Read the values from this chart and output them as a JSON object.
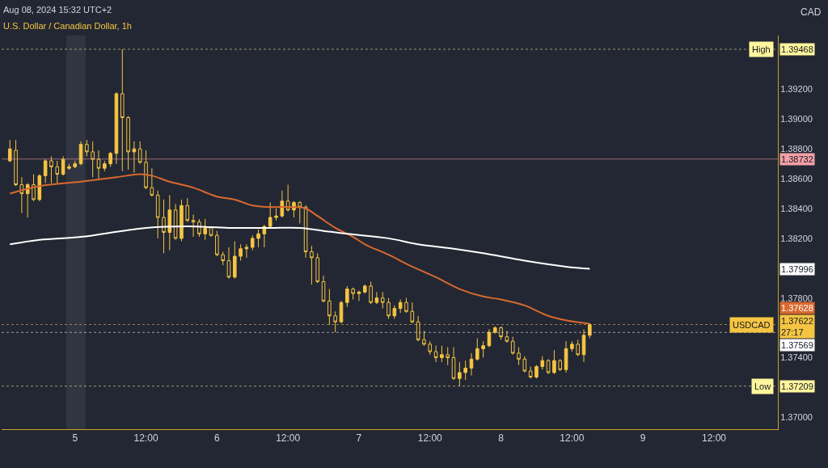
{
  "chart_data": {
    "type": "candlestick",
    "title": "U.S. Dollar / Canadian Dollar, 1h",
    "subtitle": "Aug 08, 2024 15:32 UTC+2",
    "color": "#f5c542",
    "x": [
      "2024-08-04T13:00",
      "2024-08-04T14:00",
      "2024-08-04T15:00",
      "2024-08-04T16:00",
      "2024-08-04T17:00",
      "2024-08-04T18:00",
      "2024-08-04T19:00",
      "2024-08-04T20:00",
      "2024-08-04T21:00",
      "2024-08-04T22:00",
      "2024-08-04T23:00",
      "2024-08-05T00:00",
      "2024-08-05T01:00",
      "2024-08-05T02:00",
      "2024-08-05T03:00",
      "2024-08-05T04:00",
      "2024-08-05T05:00",
      "2024-08-05T06:00",
      "2024-08-05T07:00",
      "2024-08-05T08:00",
      "2024-08-05T09:00",
      "2024-08-05T10:00",
      "2024-08-05T11:00",
      "2024-08-05T12:00",
      "2024-08-05T13:00",
      "2024-08-05T14:00",
      "2024-08-05T15:00",
      "2024-08-05T16:00",
      "2024-08-05T17:00",
      "2024-08-05T18:00",
      "2024-08-05T19:00",
      "2024-08-05T20:00",
      "2024-08-05T21:00",
      "2024-08-05T22:00",
      "2024-08-05T23:00",
      "2024-08-06T00:00",
      "2024-08-06T01:00",
      "2024-08-06T02:00",
      "2024-08-06T03:00",
      "2024-08-06T04:00",
      "2024-08-06T05:00",
      "2024-08-06T06:00",
      "2024-08-06T07:00",
      "2024-08-06T08:00",
      "2024-08-06T09:00",
      "2024-08-06T10:00",
      "2024-08-06T11:00",
      "2024-08-06T12:00",
      "2024-08-06T13:00",
      "2024-08-06T14:00",
      "2024-08-06T15:00",
      "2024-08-06T16:00",
      "2024-08-06T17:00",
      "2024-08-06T18:00",
      "2024-08-06T19:00",
      "2024-08-06T20:00",
      "2024-08-06T21:00",
      "2024-08-06T22:00",
      "2024-08-06T23:00",
      "2024-08-07T00:00",
      "2024-08-07T01:00",
      "2024-08-07T02:00",
      "2024-08-07T03:00",
      "2024-08-07T04:00",
      "2024-08-07T05:00",
      "2024-08-07T06:00",
      "2024-08-07T07:00",
      "2024-08-07T08:00",
      "2024-08-07T09:00",
      "2024-08-07T10:00",
      "2024-08-07T11:00",
      "2024-08-07T12:00",
      "2024-08-07T13:00",
      "2024-08-07T14:00",
      "2024-08-07T15:00",
      "2024-08-07T16:00",
      "2024-08-07T17:00",
      "2024-08-07T18:00",
      "2024-08-07T19:00",
      "2024-08-07T20:00",
      "2024-08-07T21:00",
      "2024-08-07T22:00",
      "2024-08-07T23:00",
      "2024-08-08T00:00",
      "2024-08-08T01:00",
      "2024-08-08T02:00",
      "2024-08-08T03:00",
      "2024-08-08T04:00",
      "2024-08-08T05:00",
      "2024-08-08T06:00",
      "2024-08-08T07:00",
      "2024-08-08T08:00",
      "2024-08-08T09:00",
      "2024-08-08T10:00",
      "2024-08-08T11:00",
      "2024-08-08T12:00",
      "2024-08-08T13:00",
      "2024-08-08T14:00",
      "2024-08-08T15:00"
    ],
    "ohlc": [
      [
        1.3872,
        1.3886,
        1.3871,
        1.388
      ],
      [
        1.3879,
        1.3886,
        1.3855,
        1.3856
      ],
      [
        1.3856,
        1.3861,
        1.3837,
        1.385
      ],
      [
        1.385,
        1.3857,
        1.3834,
        1.3856
      ],
      [
        1.3856,
        1.3863,
        1.3845,
        1.3846
      ],
      [
        1.3846,
        1.3863,
        1.3845,
        1.3862
      ],
      [
        1.3862,
        1.3873,
        1.3857,
        1.3872
      ],
      [
        1.3872,
        1.3875,
        1.3857,
        1.3868
      ],
      [
        1.3868,
        1.3872,
        1.3857,
        1.3863
      ],
      [
        1.3863,
        1.3875,
        1.3862,
        1.3873
      ],
      [
        1.3867,
        1.387,
        1.3866,
        1.3868
      ],
      [
        1.3868,
        1.3872,
        1.3867,
        1.387
      ],
      [
        1.387,
        1.3885,
        1.3869,
        1.3883
      ],
      [
        1.3883,
        1.3886,
        1.3875,
        1.3878
      ],
      [
        1.3878,
        1.3885,
        1.3861,
        1.3873
      ],
      [
        1.3873,
        1.3879,
        1.386,
        1.3867
      ],
      [
        1.3867,
        1.3872,
        1.3865,
        1.387
      ],
      [
        1.387,
        1.3878,
        1.3868,
        1.3877
      ],
      [
        1.3877,
        1.3918,
        1.387,
        1.3917
      ],
      [
        1.3917,
        1.39468,
        1.3865,
        1.3901
      ],
      [
        1.3901,
        1.3902,
        1.3866,
        1.3878
      ],
      [
        1.3878,
        1.3885,
        1.3864,
        1.388
      ],
      [
        1.388,
        1.3885,
        1.387,
        1.3871
      ],
      [
        1.3871,
        1.3879,
        1.3853,
        1.3854
      ],
      [
        1.3854,
        1.3867,
        1.3848,
        1.3849
      ],
      [
        1.3849,
        1.3852,
        1.382,
        1.3834
      ],
      [
        1.3834,
        1.3846,
        1.381,
        1.3824
      ],
      [
        1.3824,
        1.3849,
        1.3812,
        1.3839
      ],
      [
        1.3839,
        1.3843,
        1.3819,
        1.382
      ],
      [
        1.382,
        1.3846,
        1.3818,
        1.3842
      ],
      [
        1.3842,
        1.3847,
        1.3831,
        1.3832
      ],
      [
        1.3832,
        1.3836,
        1.3821,
        1.3831
      ],
      [
        1.3831,
        1.3833,
        1.3821,
        1.3823
      ],
      [
        1.3823,
        1.3833,
        1.3819,
        1.3827
      ],
      [
        1.3827,
        1.3828,
        1.3821,
        1.3822
      ],
      [
        1.3822,
        1.3825,
        1.3808,
        1.3809
      ],
      [
        1.3809,
        1.3811,
        1.3802,
        1.3805
      ],
      [
        1.3805,
        1.3814,
        1.3793,
        1.3794
      ],
      [
        1.3794,
        1.3818,
        1.3793,
        1.3808
      ],
      [
        1.3808,
        1.3816,
        1.3805,
        1.3813
      ],
      [
        1.3813,
        1.3816,
        1.3807,
        1.3814
      ],
      [
        1.3814,
        1.3822,
        1.3812,
        1.382
      ],
      [
        1.382,
        1.3826,
        1.3814,
        1.3823
      ],
      [
        1.3823,
        1.3829,
        1.3814,
        1.3828
      ],
      [
        1.3828,
        1.3844,
        1.3827,
        1.3834
      ],
      [
        1.3834,
        1.384,
        1.3832,
        1.3835
      ],
      [
        1.3835,
        1.3852,
        1.3834,
        1.3845
      ],
      [
        1.3845,
        1.3856,
        1.3838,
        1.3839
      ],
      [
        1.3839,
        1.3845,
        1.3834,
        1.3844
      ],
      [
        1.3844,
        1.3845,
        1.383,
        1.3841
      ],
      [
        1.3841,
        1.3842,
        1.3807,
        1.3811
      ],
      [
        1.3811,
        1.3815,
        1.3789,
        1.3807
      ],
      [
        1.3807,
        1.381,
        1.379,
        1.3791
      ],
      [
        1.3791,
        1.3795,
        1.3777,
        1.3778
      ],
      [
        1.3778,
        1.3786,
        1.3762,
        1.3768
      ],
      [
        1.3768,
        1.3771,
        1.3757,
        1.3764
      ],
      [
        1.3764,
        1.3778,
        1.3763,
        1.3777
      ],
      [
        1.3777,
        1.3788,
        1.3774,
        1.3786
      ],
      [
        1.3786,
        1.3787,
        1.3779,
        1.3783
      ],
      [
        1.3783,
        1.3785,
        1.3778,
        1.3784
      ],
      [
        1.3784,
        1.3789,
        1.3783,
        1.3788
      ],
      [
        1.3788,
        1.3791,
        1.3776,
        1.3777
      ],
      [
        1.3777,
        1.3784,
        1.3776,
        1.378
      ],
      [
        1.378,
        1.3784,
        1.3773,
        1.3777
      ],
      [
        1.3777,
        1.378,
        1.3766,
        1.3768
      ],
      [
        1.3768,
        1.3775,
        1.3766,
        1.3773
      ],
      [
        1.3773,
        1.3779,
        1.377,
        1.3777
      ],
      [
        1.3777,
        1.378,
        1.377,
        1.3771
      ],
      [
        1.3771,
        1.3777,
        1.3763,
        1.3764
      ],
      [
        1.3764,
        1.3768,
        1.3751,
        1.3752
      ],
      [
        1.3752,
        1.3758,
        1.3748,
        1.3749
      ],
      [
        1.3749,
        1.3751,
        1.3742,
        1.3744
      ],
      [
        1.3744,
        1.3748,
        1.3737,
        1.374
      ],
      [
        1.374,
        1.3748,
        1.3737,
        1.3742
      ],
      [
        1.3742,
        1.3747,
        1.3735,
        1.374
      ],
      [
        1.374,
        1.3747,
        1.3725,
        1.3726
      ],
      [
        1.3726,
        1.3737,
        1.37209,
        1.373
      ],
      [
        1.373,
        1.3738,
        1.3725,
        1.3733
      ],
      [
        1.3733,
        1.3743,
        1.3728,
        1.3739
      ],
      [
        1.3739,
        1.3753,
        1.3738,
        1.3746
      ],
      [
        1.3746,
        1.3751,
        1.374,
        1.3748
      ],
      [
        1.3748,
        1.3759,
        1.3747,
        1.3757
      ],
      [
        1.3757,
        1.3761,
        1.3756,
        1.376
      ],
      [
        1.376,
        1.3761,
        1.3752,
        1.3754
      ],
      [
        1.3754,
        1.3758,
        1.375,
        1.3751
      ],
      [
        1.3751,
        1.3754,
        1.3742,
        1.3743
      ],
      [
        1.3743,
        1.3747,
        1.3735,
        1.3739
      ],
      [
        1.3739,
        1.3741,
        1.373,
        1.3731
      ],
      [
        1.3731,
        1.3734,
        1.3726,
        1.3727
      ],
      [
        1.3727,
        1.3735,
        1.3726,
        1.3734
      ],
      [
        1.3734,
        1.3741,
        1.3732,
        1.3738
      ],
      [
        1.3738,
        1.3739,
        1.3729,
        1.373
      ],
      [
        1.373,
        1.3745,
        1.3729,
        1.3738
      ],
      [
        1.3738,
        1.3739,
        1.3731,
        1.3732
      ],
      [
        1.3732,
        1.3751,
        1.373,
        1.3746
      ],
      [
        1.3746,
        1.3751,
        1.3744,
        1.3749
      ],
      [
        1.3749,
        1.3752,
        1.3741,
        1.3742
      ],
      [
        1.3742,
        1.3759,
        1.3737,
        1.3755
      ],
      [
        1.3755,
        1.3763,
        1.3753,
        1.37622
      ]
    ],
    "series": [
      {
        "type": "line",
        "color": "#d9692e",
        "x": [
          "2024-08-04T13:00",
          "2024-08-04T18:00",
          "2024-08-05T01:00",
          "2024-08-05T07:00",
          "2024-08-05T11:00",
          "2024-08-05T13:00",
          "2024-08-05T16:00",
          "2024-08-05T20:00",
          "2024-08-06T00:00",
          "2024-08-06T03:00",
          "2024-08-06T06:00",
          "2024-08-06T09:00",
          "2024-08-06T13:00",
          "2024-08-06T15:00",
          "2024-08-06T17:00",
          "2024-08-06T20:00",
          "2024-08-06T23:00",
          "2024-08-07T01:00",
          "2024-08-07T05:00",
          "2024-08-07T09:00",
          "2024-08-07T13:00",
          "2024-08-07T17:00",
          "2024-08-07T21:00",
          "2024-08-08T00:00",
          "2024-08-08T04:00",
          "2024-08-08T08:00",
          "2024-08-08T11:00",
          "2024-08-08T15:00"
        ],
        "values": [
          1.385,
          1.3855,
          1.3858,
          1.3861,
          1.3863,
          1.3862,
          1.3858,
          1.3854,
          1.3848,
          1.3846,
          1.3842,
          1.3841,
          1.3841,
          1.384,
          1.3835,
          1.3827,
          1.3821,
          1.3816,
          1.3809,
          1.3801,
          1.3794,
          1.3786,
          1.3781,
          1.3779,
          1.3775,
          1.3768,
          1.3765,
          1.37628
        ]
      },
      {
        "type": "line",
        "color": "#ffffff",
        "x": [
          "2024-08-04T13:00",
          "2024-08-04T18:00",
          "2024-08-05T01:00",
          "2024-08-05T08:00",
          "2024-08-05T12:00",
          "2024-08-05T19:00",
          "2024-08-06T02:00",
          "2024-08-06T09:00",
          "2024-08-06T14:00",
          "2024-08-06T18:00",
          "2024-08-06T22:00",
          "2024-08-07T05:00",
          "2024-08-07T10:00",
          "2024-08-07T16:00",
          "2024-08-07T21:00",
          "2024-08-08T04:00",
          "2024-08-08T11:00",
          "2024-08-08T15:00"
        ],
        "values": [
          1.3816,
          1.3819,
          1.3821,
          1.3825,
          1.3827,
          1.3828,
          1.3827,
          1.3827,
          1.3827,
          1.3825,
          1.3823,
          1.382,
          1.3816,
          1.3813,
          1.381,
          1.3805,
          1.3801,
          1.37996
        ]
      }
    ],
    "xlim": [
      "2024-08-04T11:36",
      "2024-08-09T22:48"
    ],
    "xticks": [
      {
        "value": "2024-08-05",
        "label": "5"
      },
      {
        "value": "2024-08-05T12:00",
        "label": "12:00"
      },
      {
        "value": "2024-08-06",
        "label": "6"
      },
      {
        "value": "2024-08-06T12:00",
        "label": "12:00"
      },
      {
        "value": "2024-08-07",
        "label": "7"
      },
      {
        "value": "2024-08-07T12:00",
        "label": "12:00"
      },
      {
        "value": "2024-08-08",
        "label": "8"
      },
      {
        "value": "2024-08-08T12:00",
        "label": "12:00"
      },
      {
        "value": "2024-08-09",
        "label": "9"
      },
      {
        "value": "2024-08-09T12:00",
        "label": "12:00"
      }
    ],
    "ylim": [
      1.3692,
      1.3956
    ],
    "yticks": [
      {
        "value": 1.37,
        "label": "1.37000"
      },
      {
        "value": 1.374,
        "label": "1.37400"
      },
      {
        "value": 1.378,
        "label": "1.37800"
      },
      {
        "value": 1.382,
        "label": "1.38200"
      },
      {
        "value": 1.384,
        "label": "1.38400"
      },
      {
        "value": 1.386,
        "label": "1.38600"
      },
      {
        "value": 1.388,
        "label": "1.38800"
      },
      {
        "value": 1.39,
        "label": "1.39000"
      },
      {
        "value": 1.392,
        "label": "1.39200"
      }
    ],
    "ref_lines": [
      {
        "axis": "y",
        "value": 1.39468,
        "label": "High",
        "color": "#fff59d",
        "line_style": "dotted"
      },
      {
        "axis": "y",
        "value": 1.38732,
        "color": "#f4a0a8",
        "line_style": "solid"
      },
      {
        "axis": "y",
        "value": 1.37622,
        "label": "USDCAD",
        "color": "#f5c542",
        "line_style": "dotted"
      },
      {
        "axis": "y",
        "value": 1.37569,
        "color": "#ffffff",
        "line_style": "dotted"
      },
      {
        "axis": "y",
        "value": 1.37209,
        "label": "Low",
        "color": "#fff59d",
        "line_style": "dotted"
      }
    ],
    "bands": [
      {
        "axis": "x",
        "from": "2024-08-04T22:30",
        "to": "2024-08-05T01:48",
        "color": "#3a3f4b"
      }
    ],
    "annotations": [
      "CAD",
      "1.39468",
      "1.38732",
      "1.37996",
      "1.37628",
      "1.37622\n27:17",
      "1.37569",
      "1.37209"
    ],
    "grid": false
  }
}
